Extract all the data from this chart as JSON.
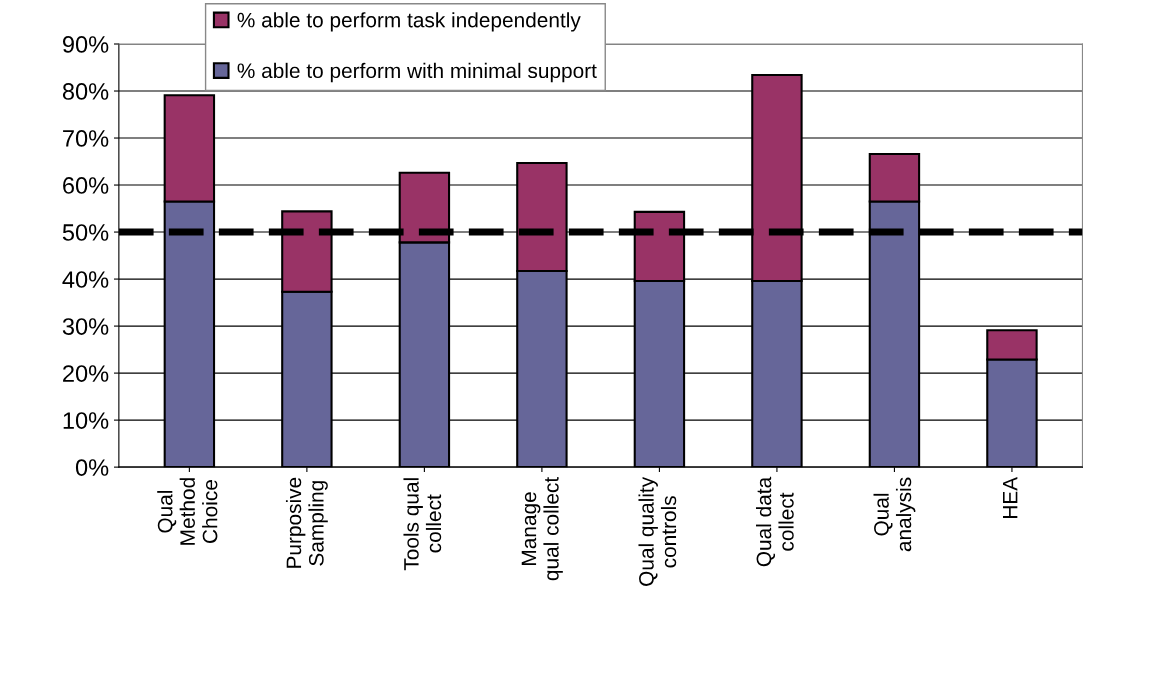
{
  "chart_data": {
    "type": "bar",
    "stacked": true,
    "categories": [
      "Qual\nMethod\nChoice",
      "Purposive\nSampling",
      "Tools qual\ncollect",
      "Manage\nqual collect",
      "Qual quality\ncontrols",
      "Qual data\ncollect",
      "Qual\nanalysis",
      "HEA"
    ],
    "series": [
      {
        "name": "% able to perform with minimal support",
        "color": "#666699",
        "values": [
          56.5,
          37.3,
          47.8,
          41.7,
          39.6,
          39.6,
          56.5,
          22.9
        ]
      },
      {
        "name": "% able to perform task independently",
        "color": "#993366",
        "values": [
          22.6,
          17.1,
          14.8,
          23.0,
          14.7,
          43.8,
          10.1,
          6.2
        ]
      }
    ],
    "ylim": [
      0,
      90
    ],
    "yticks": [
      {
        "value": 0,
        "label": "0%"
      },
      {
        "value": 10,
        "label": "10%"
      },
      {
        "value": 20,
        "label": "20%"
      },
      {
        "value": 30,
        "label": "30%"
      },
      {
        "value": 40,
        "label": "40%"
      },
      {
        "value": 50,
        "label": "50%"
      },
      {
        "value": 60,
        "label": "60%"
      },
      {
        "value": 70,
        "label": "70%"
      },
      {
        "value": 80,
        "label": "80%"
      },
      {
        "value": 90,
        "label": "90%"
      }
    ],
    "ref_lines": [
      {
        "axis": "y",
        "value": 50,
        "color": "#000000",
        "line_style": "dashed"
      }
    ],
    "grid": "y",
    "legend": "top"
  }
}
